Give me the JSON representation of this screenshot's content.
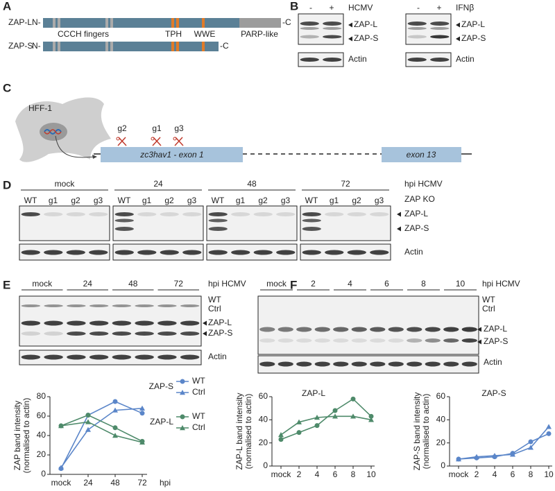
{
  "panel_labels": [
    "A",
    "B",
    "C",
    "D",
    "E",
    "F"
  ],
  "a": {
    "isoforms": [
      {
        "name": "ZAP-L",
        "n": "N-",
        "c": "-C"
      },
      {
        "name": "ZAP-S",
        "n": "N-",
        "c": "-C"
      }
    ],
    "domains": [
      "CCCH fingers",
      "TPH",
      "WWE",
      "PARP-like"
    ]
  },
  "b": {
    "blots": [
      {
        "signs": [
          "-",
          "+"
        ],
        "treatment": "HCMV",
        "bands": [
          "ZAP-L",
          "ZAP-S"
        ],
        "loading": "Actin"
      },
      {
        "signs": [
          "-",
          "+"
        ],
        "treatment": "IFNβ",
        "bands": [
          "ZAP-L",
          "ZAP-S"
        ],
        "loading": "Actin"
      }
    ]
  },
  "c": {
    "cell": "HFF-1",
    "guides": [
      "g2",
      "g1",
      "g3"
    ],
    "exons": [
      "zc3hav1 - exon 1",
      "exon 13"
    ]
  },
  "d": {
    "groups": [
      "mock",
      "24",
      "48",
      "72"
    ],
    "group_axis": "hpi HCMV",
    "lanes": [
      "WT",
      "g1",
      "g2",
      "g3"
    ],
    "lanes_label": "ZAP KO",
    "bands": [
      "ZAP-L",
      "ZAP-S"
    ],
    "loading": "Actin"
  },
  "e": {
    "groups": [
      "mock",
      "24",
      "48",
      "72"
    ],
    "group_axis": "hpi HCMV",
    "conditions": [
      "WT",
      "Ctrl"
    ],
    "bands": [
      "ZAP-L",
      "ZAP-S"
    ],
    "loading": "Actin"
  },
  "f": {
    "groups": [
      "mock",
      "2",
      "4",
      "6",
      "8",
      "10"
    ],
    "group_axis": "hpi HCMV",
    "conditions": [
      "WT",
      "Ctrl"
    ],
    "bands": [
      "ZAP-L",
      "ZAP-S"
    ],
    "loading": "Actin"
  },
  "chart_data": [
    {
      "type": "line",
      "ylabel": [
        "ZAP band intensity",
        "(normalised to actin)"
      ],
      "xlabel": "hpi",
      "categories": [
        "mock",
        "24",
        "48",
        "72"
      ],
      "ylim": [
        0,
        80
      ],
      "yticks": [
        0,
        20,
        40,
        60,
        80
      ],
      "series": [
        {
          "group": "ZAP-S",
          "name": "WT",
          "color": "#5b86c9",
          "marker": "circle",
          "values": [
            6,
            61,
            75,
            63
          ]
        },
        {
          "group": "ZAP-S",
          "name": "Ctrl",
          "color": "#5b86c9",
          "marker": "triangle",
          "values": [
            7,
            46,
            66,
            68
          ]
        },
        {
          "group": "ZAP-L",
          "name": "WT",
          "color": "#4e8a6a",
          "marker": "circle",
          "values": [
            50,
            61,
            48,
            34
          ]
        },
        {
          "group": "ZAP-L",
          "name": "Ctrl",
          "color": "#4e8a6a",
          "marker": "triangle",
          "values": [
            50,
            54,
            40,
            33
          ]
        }
      ]
    },
    {
      "type": "line",
      "title": "ZAP-L",
      "ylabel": [
        "ZAP-L band intensity",
        "(normalised to actin)"
      ],
      "categories": [
        "mock",
        "2",
        "4",
        "6",
        "8",
        "10"
      ],
      "ylim": [
        0,
        60
      ],
      "yticks": [
        0,
        20,
        40,
        60
      ],
      "series": [
        {
          "color": "#4e8a6a",
          "marker": "circle",
          "values": [
            23,
            29,
            35,
            48,
            58,
            43
          ]
        },
        {
          "color": "#4e8a6a",
          "marker": "triangle",
          "values": [
            27,
            38,
            42,
            43,
            43,
            40
          ]
        }
      ]
    },
    {
      "type": "line",
      "title": "ZAP-S",
      "ylabel": [
        "ZAP-S band intensity",
        "(normalised to actin)"
      ],
      "categories": [
        "mock",
        "2",
        "4",
        "6",
        "8",
        "10"
      ],
      "ylim": [
        0,
        60
      ],
      "yticks": [
        0,
        20,
        40,
        60
      ],
      "series": [
        {
          "color": "#5b86c9",
          "marker": "circle",
          "values": [
            6,
            7,
            8,
            11,
            21,
            28
          ]
        },
        {
          "color": "#5b86c9",
          "marker": "triangle",
          "values": [
            6,
            8,
            9,
            10,
            16,
            34
          ]
        }
      ]
    }
  ]
}
